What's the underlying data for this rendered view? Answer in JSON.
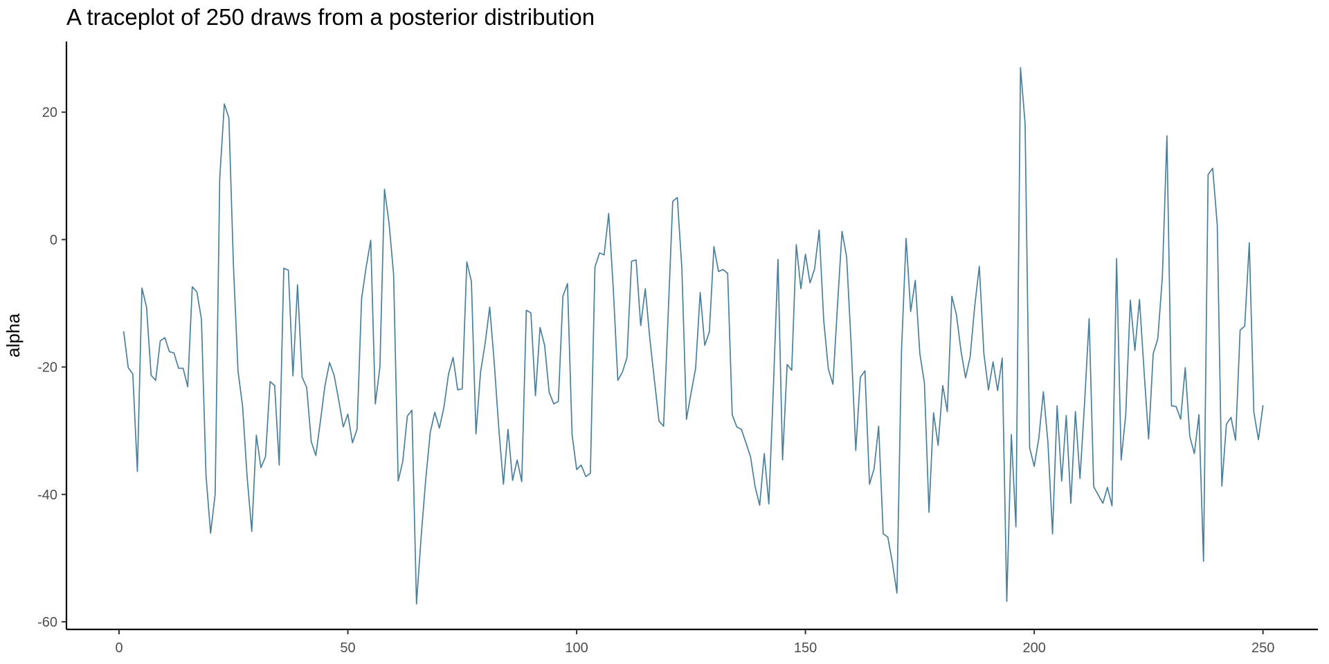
{
  "chart_data": {
    "type": "line",
    "title": "A traceplot of 250 draws from a posterior distribution",
    "xlabel": "",
    "ylabel": "alpha",
    "xlim": [
      -11.5,
      262
    ],
    "ylim": [
      -61.2,
      31.1
    ],
    "x_ticks": [
      0,
      50,
      100,
      150,
      200,
      250
    ],
    "y_ticks": [
      -60,
      -40,
      -20,
      0,
      20
    ],
    "grid": false,
    "line_color": "#4a7f9c",
    "series": [
      {
        "x_start": 1,
        "values": [
          -14.4,
          -20.1,
          -21.1,
          -36.4,
          -7.6,
          -10.6,
          -21.3,
          -22.1,
          -15.9,
          -15.4,
          -17.6,
          -17.8,
          -20.2,
          -20.2,
          -23.1,
          -7.4,
          -8.2,
          -12.5,
          -37.0,
          -46.1,
          -40.0,
          9.6,
          21.3,
          19.1,
          -4.2,
          -20.7,
          -26.2,
          -37.4,
          -45.8,
          -30.7,
          -35.8,
          -34.1,
          -22.3,
          -22.9,
          -35.4,
          -4.5,
          -4.8,
          -21.4,
          -7.1,
          -21.6,
          -23.2,
          -31.7,
          -33.9,
          -28.5,
          -22.9,
          -19.3,
          -21.3,
          -25.2,
          -29.4,
          -27.4,
          -31.9,
          -29.8,
          -9.3,
          -4.3,
          -0.1,
          -25.8,
          -20.0,
          7.9,
          2.6,
          -5.5,
          -37.9,
          -34.8,
          -27.7,
          -26.8,
          -57.2,
          -46.8,
          -37.8,
          -30.3,
          -27.1,
          -29.6,
          -26.3,
          -21.1,
          -18.5,
          -23.6,
          -23.4,
          -3.5,
          -6.6,
          -30.5,
          -20.8,
          -16.3,
          -10.6,
          -19.4,
          -29.8,
          -38.4,
          -29.8,
          -37.8,
          -34.6,
          -38.0,
          -11.1,
          -11.5,
          -24.5,
          -13.8,
          -16.6,
          -24.0,
          -25.8,
          -25.4,
          -8.9,
          -6.9,
          -30.6,
          -36.1,
          -35.4,
          -37.2,
          -36.7,
          -4.3,
          -2.1,
          -2.4,
          4.1,
          -7.6,
          -22.1,
          -20.8,
          -18.5,
          -3.4,
          -3.2,
          -13.5,
          -7.7,
          -15.6,
          -22.1,
          -28.5,
          -29.3,
          -11.8,
          6.0,
          6.6,
          -4.6,
          -28.2,
          -24.1,
          -20.2,
          -8.3,
          -16.6,
          -14.5,
          -1.1,
          -5.0,
          -4.7,
          -5.3,
          -27.5,
          -29.4,
          -29.8,
          -31.9,
          -34.1,
          -38.8,
          -41.7,
          -33.6,
          -41.5,
          -23.2,
          -3.1,
          -34.6,
          -19.6,
          -20.5,
          -0.8,
          -7.7,
          -2.3,
          -6.8,
          -4.6,
          1.5,
          -12.7,
          -20.3,
          -22.7,
          -10.4,
          1.3,
          -2.7,
          -16.6,
          -33.1,
          -21.6,
          -20.6,
          -38.4,
          -36.0,
          -29.3,
          -46.2,
          -46.7,
          -50.7,
          -55.5,
          -17.3,
          0.2,
          -11.3,
          -6.4,
          -17.9,
          -22.5,
          -42.8,
          -27.2,
          -32.3,
          -22.9,
          -27.0,
          -8.9,
          -11.8,
          -17.5,
          -21.7,
          -18.4,
          -10.4,
          -4.2,
          -17.9,
          -23.6,
          -19.2,
          -23.7,
          -18.6,
          -56.8,
          -30.6,
          -45.1,
          27.0,
          18.3,
          -32.7,
          -35.6,
          -31.2,
          -23.9,
          -31.9,
          -46.2,
          -26.1,
          -37.9,
          -27.6,
          -41.4,
          -27.0,
          -37.5,
          -25.7,
          -12.4,
          -38.8,
          -40.1,
          -41.4,
          -38.9,
          -41.8,
          -3.0,
          -34.6,
          -27.5,
          -9.5,
          -17.4,
          -9.4,
          -20.6,
          -31.3,
          -17.9,
          -15.6,
          -5.9,
          16.3,
          -26.1,
          -26.2,
          -28.2,
          -20.1,
          -30.9,
          -33.6,
          -27.5,
          -50.5,
          10.2,
          11.2,
          2.3,
          -38.7,
          -29.0,
          -27.9,
          -31.5,
          -14.2,
          -13.6,
          -0.5,
          -27.1,
          -31.4,
          -26.0
        ]
      }
    ]
  }
}
